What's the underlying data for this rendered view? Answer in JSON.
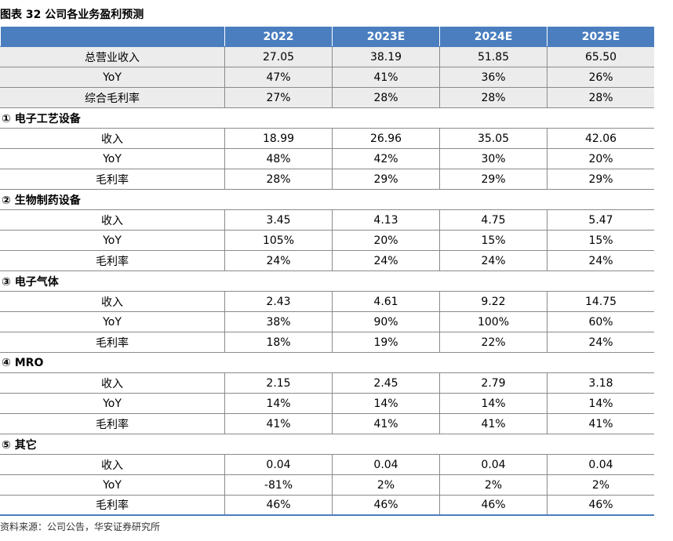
{
  "title": "图表 32 公司各业务盈利预测",
  "table": {
    "columns": [
      "2022",
      "2023E",
      "2024E",
      "2025E"
    ],
    "summary": [
      {
        "label": "总营业收入",
        "cells": [
          "27.05",
          "38.19",
          "51.85",
          "65.50"
        ]
      },
      {
        "label": "YoY",
        "cells": [
          "47%",
          "41%",
          "36%",
          "26%"
        ]
      },
      {
        "label": "综合毛利率",
        "cells": [
          "27%",
          "28%",
          "28%",
          "28%"
        ]
      }
    ],
    "sections": [
      {
        "title": "① 电子工艺设备",
        "rows": [
          {
            "label": "收入",
            "cells": [
              "18.99",
              "26.96",
              "35.05",
              "42.06"
            ]
          },
          {
            "label": "YoY",
            "cells": [
              "48%",
              "42%",
              "30%",
              "20%"
            ]
          },
          {
            "label": "毛利率",
            "cells": [
              "28%",
              "29%",
              "29%",
              "29%"
            ]
          }
        ]
      },
      {
        "title": "② 生物制药设备",
        "rows": [
          {
            "label": "收入",
            "cells": [
              "3.45",
              "4.13",
              "4.75",
              "5.47"
            ]
          },
          {
            "label": "YoY",
            "cells": [
              "105%",
              "20%",
              "15%",
              "15%"
            ]
          },
          {
            "label": "毛利率",
            "cells": [
              "24%",
              "24%",
              "24%",
              "24%"
            ]
          }
        ]
      },
      {
        "title": "③ 电子气体",
        "rows": [
          {
            "label": "收入",
            "cells": [
              "2.43",
              "4.61",
              "9.22",
              "14.75"
            ]
          },
          {
            "label": "YoY",
            "cells": [
              "38%",
              "90%",
              "100%",
              "60%"
            ]
          },
          {
            "label": "毛利率",
            "cells": [
              "18%",
              "19%",
              "22%",
              "24%"
            ]
          }
        ]
      },
      {
        "title": "④ MRO",
        "rows": [
          {
            "label": "收入",
            "cells": [
              "2.15",
              "2.45",
              "2.79",
              "3.18"
            ]
          },
          {
            "label": "YoY",
            "cells": [
              "14%",
              "14%",
              "14%",
              "14%"
            ]
          },
          {
            "label": "毛利率",
            "cells": [
              "41%",
              "41%",
              "41%",
              "41%"
            ]
          }
        ]
      },
      {
        "title": "⑤ 其它",
        "rows": [
          {
            "label": "收入",
            "cells": [
              "0.04",
              "0.04",
              "0.04",
              "0.04"
            ]
          },
          {
            "label": "YoY",
            "cells": [
              "-81%",
              "2%",
              "2%",
              "2%"
            ]
          },
          {
            "label": "毛利率",
            "cells": [
              "46%",
              "46%",
              "46%",
              "46%"
            ]
          }
        ]
      }
    ]
  },
  "source": "资料来源：公司公告，华安证券研究所"
}
